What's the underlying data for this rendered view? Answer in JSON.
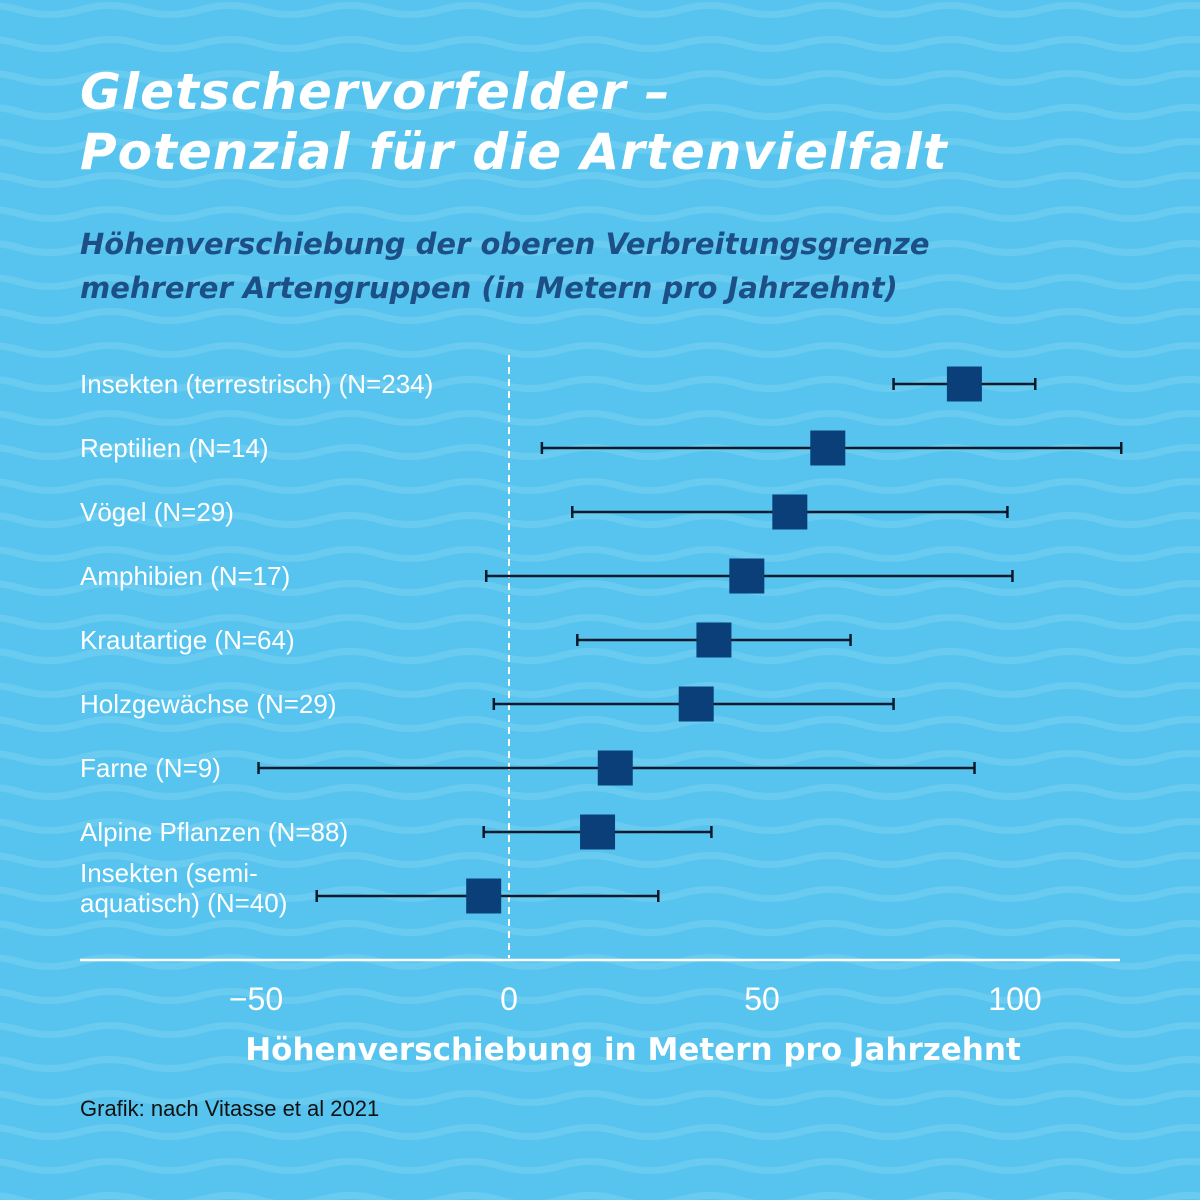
{
  "title_lines": [
    "Gletschervorfelder –",
    "Potenzial für die Artenvielfalt"
  ],
  "subtitle_lines": [
    "Höhenverschiebung der oberen Verbreitungsgrenze",
    "mehrerer Artengruppen (in Metern pro Jahrzehnt)"
  ],
  "source": "Grafik: nach Vitasse et al 2021",
  "colors": {
    "background": "#56c4ef",
    "marker": "#0a3f7a",
    "whisker": "#0b1a2a",
    "axis": "#ffffff",
    "subtitle": "#1b4f86"
  },
  "chart_data": {
    "type": "forest",
    "xlabel": "Höhenverschiebung in Metern pro Jahrzehnt",
    "xlim": [
      -85,
      121
    ],
    "xticks": [
      -50,
      0,
      50,
      100
    ],
    "xtick_labels": [
      "−50",
      "0",
      "50",
      "100"
    ],
    "reference_line": 0,
    "grid": false,
    "categories": [
      [
        "Insekten (terrestrisch) (N=234)"
      ],
      [
        "Reptilien (N=14)"
      ],
      [
        "Vögel (N=29)"
      ],
      [
        "Amphibien (N=17)"
      ],
      [
        "Krautartige (N=64)"
      ],
      [
        "Holzgewächse (N=29)"
      ],
      [
        "Farne (N=9)"
      ],
      [
        "Alpine Pflanzen (N=88)"
      ],
      [
        "Insekten (semi-",
        "aquatisch) (N=40)"
      ]
    ],
    "estimate": [
      90,
      63,
      55.5,
      47,
      40.5,
      37,
      21,
      17.5,
      -5
    ],
    "lower": [
      76,
      6.5,
      12.5,
      -4.5,
      13.5,
      -3,
      -49.5,
      -5,
      -38
    ],
    "upper": [
      104,
      121,
      98.5,
      99.5,
      67.5,
      76,
      92,
      40,
      29.5
    ]
  }
}
